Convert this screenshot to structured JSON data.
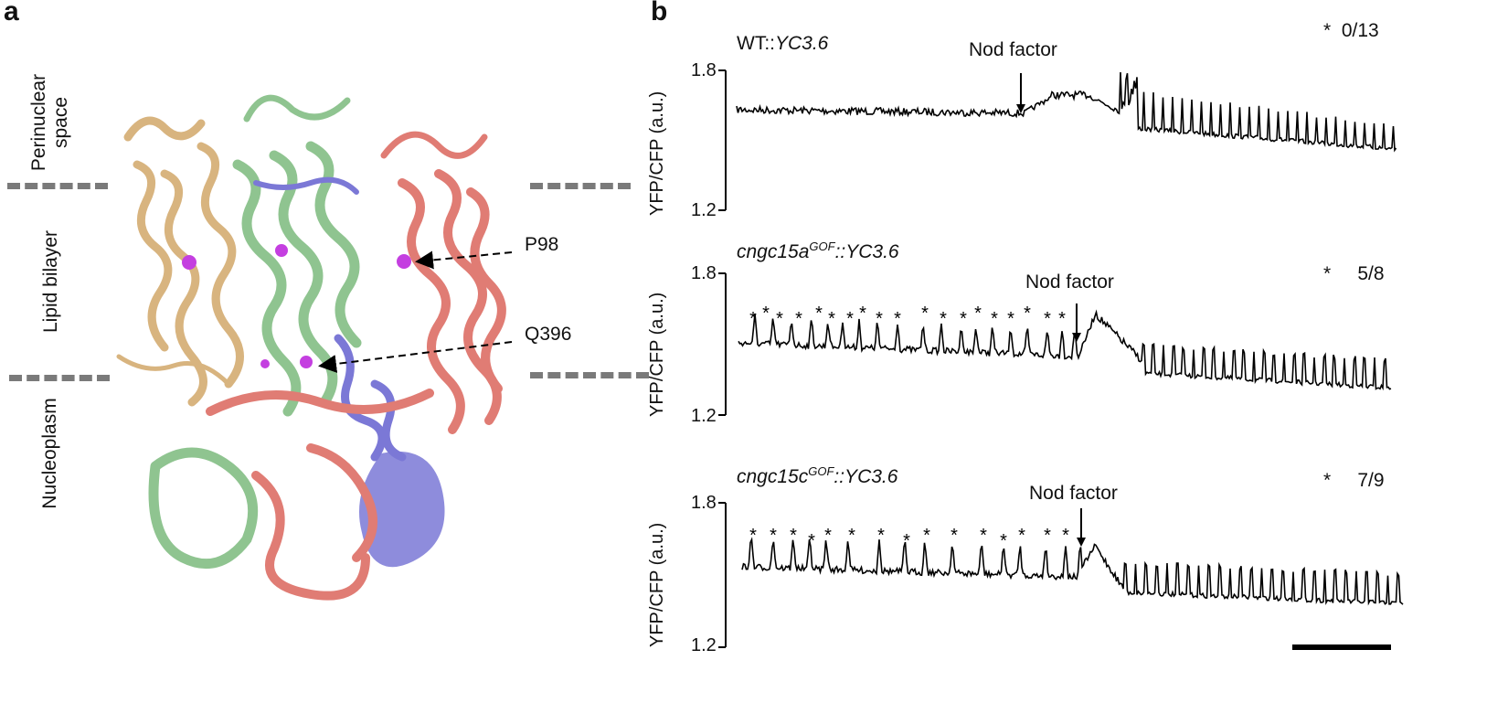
{
  "panel_a": {
    "letter": "a",
    "regions": [
      "Perinuclear space",
      "Lipid bilayer",
      "Nucleoplasm"
    ],
    "annotations": [
      "P98",
      "Q396"
    ]
  },
  "panel_b": {
    "letter": "b",
    "traces": [
      {
        "title_plain": "WT::",
        "title_italic": "YC3.6",
        "count": "0/13",
        "nod_label": "Nod factor",
        "ylabel": "YFP/CFP (a.u.)",
        "ytick_top": "1.8",
        "ytick_bottom": "1.2"
      },
      {
        "title_italic_base": "cngc15a",
        "title_sup": "GOF",
        "title_italic_rest": "::YC3.6",
        "count": "5/8",
        "nod_label": "Nod factor",
        "ylabel": "YFP/CFP (a.u.)",
        "ytick_top": "1.8",
        "ytick_bottom": "1.2"
      },
      {
        "title_italic_base": "cngc15c",
        "title_sup": "GOF",
        "title_italic_rest": "::YC3.6",
        "count": "7/9",
        "nod_label": "Nod factor",
        "ylabel": "YFP/CFP (a.u.)",
        "ytick_top": "1.8",
        "ytick_bottom": "1.2"
      }
    ],
    "star": "*"
  },
  "colors": {
    "tan": "#d8b47f",
    "green": "#8fc490",
    "purple": "#7b78d6",
    "salmon": "#e07c74",
    "magenta": "#c43fe0",
    "dash": "#7a7a7a",
    "trace": "#000000"
  }
}
